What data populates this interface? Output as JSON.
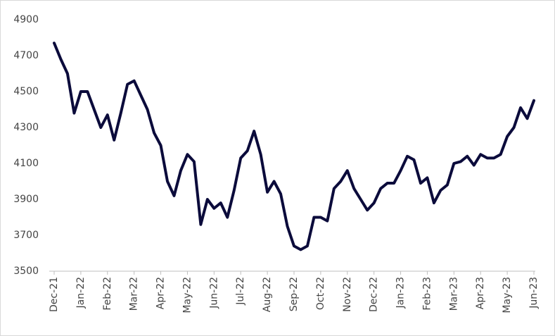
{
  "chart_data": {
    "type": "line",
    "categories": [
      "Dec-21",
      null,
      null,
      null,
      "Jan-22",
      null,
      null,
      null,
      "Feb-22",
      null,
      null,
      null,
      "Mar-22",
      null,
      null,
      null,
      "Apr-22",
      null,
      null,
      null,
      "May-22",
      null,
      null,
      null,
      "Jun-22",
      null,
      null,
      null,
      "Jul-22",
      null,
      null,
      null,
      "Aug-22",
      null,
      null,
      null,
      "Sep-22",
      null,
      null,
      null,
      "Oct-22",
      null,
      null,
      null,
      "Nov-22",
      null,
      null,
      null,
      "Dec-22",
      null,
      null,
      null,
      "Jan-23",
      null,
      null,
      null,
      "Feb-23",
      null,
      null,
      null,
      "Mar-23",
      null,
      null,
      null,
      "Apr-23",
      null,
      null,
      null,
      "May-23",
      null,
      null,
      null,
      "Jun-23"
    ],
    "values": [
      4770,
      4680,
      4600,
      4380,
      4500,
      4500,
      4400,
      4300,
      4370,
      4230,
      4380,
      4540,
      4560,
      4480,
      4400,
      4270,
      4200,
      4000,
      3920,
      4060,
      4150,
      4110,
      3760,
      3900,
      3850,
      3880,
      3800,
      3950,
      4130,
      4170,
      4280,
      4150,
      3940,
      4000,
      3930,
      3750,
      3640,
      3620,
      3640,
      3800,
      3800,
      3780,
      3960,
      4000,
      4060,
      3960,
      3900,
      3840,
      3880,
      3960,
      3990,
      3990,
      4060,
      4140,
      4120,
      3990,
      4020,
      3880,
      3950,
      3980,
      4100,
      4110,
      4140,
      4090,
      4150,
      4130,
      4130,
      4150,
      4250,
      4300,
      4410,
      4350,
      4450
    ],
    "color": "#0b0b3b",
    "ylim": [
      3500,
      4900
    ],
    "yticks": [
      3500,
      3700,
      3900,
      4100,
      4300,
      4500,
      4700,
      4900
    ],
    "grid": false
  }
}
